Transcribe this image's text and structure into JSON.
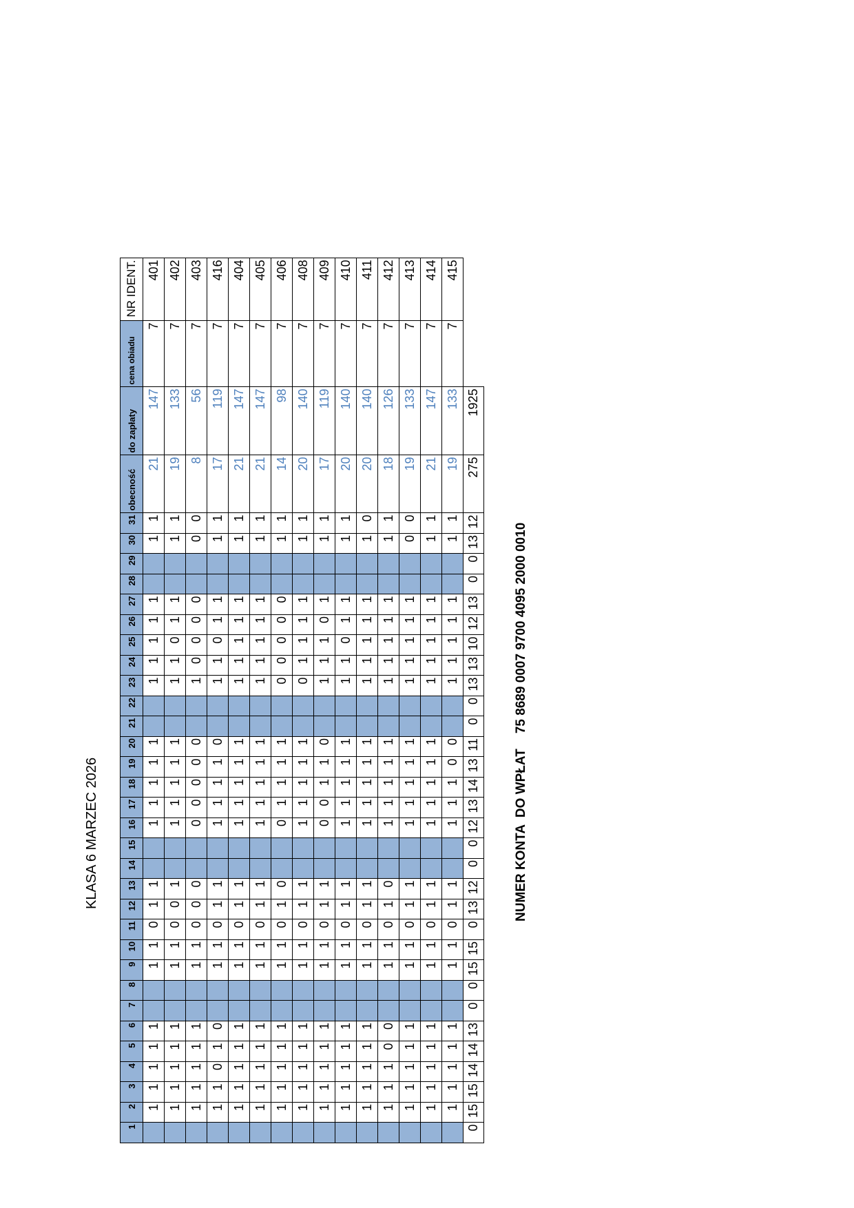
{
  "title": "KLASA 6 MARZEC 2026",
  "account": {
    "label": "NUMER KONTA  DO WPŁAT",
    "number": "75 8689 0007 9700 4095 2000 0010"
  },
  "colors": {
    "header_fill": "#95b3d7",
    "computed_text": "#4f81bd"
  },
  "table": {
    "day_headers": [
      "1",
      "2",
      "3",
      "4",
      "5",
      "6",
      "7",
      "8",
      "9",
      "10",
      "11",
      "12",
      "13",
      "14",
      "15",
      "16",
      "17",
      "18",
      "19",
      "20",
      "21",
      "22",
      "23",
      "24",
      "25",
      "26",
      "27",
      "28",
      "29",
      "30",
      "31"
    ],
    "weekend_days": [
      "1",
      "7",
      "8",
      "14",
      "15",
      "21",
      "22",
      "28",
      "29"
    ],
    "col_obecnosc": "obecność",
    "col_do_zaplaty": "do zapłaty",
    "col_cena": "cena obiadu",
    "col_ident": "NR IDENT.",
    "rows": [
      {
        "days": [
          "",
          "1",
          "1",
          "1",
          "1",
          "1",
          "",
          "",
          "1",
          "1",
          "0",
          "1",
          "1",
          "",
          "",
          "1",
          "1",
          "1",
          "1",
          "1",
          "",
          "",
          "1",
          "1",
          "1",
          "1",
          "1",
          "",
          "",
          "1",
          "1"
        ],
        "obecnosc": "21",
        "do_zaplaty": "147",
        "cena": "7",
        "ident": "401"
      },
      {
        "days": [
          "",
          "1",
          "1",
          "1",
          "1",
          "1",
          "",
          "",
          "1",
          "1",
          "0",
          "0",
          "1",
          "",
          "",
          "1",
          "1",
          "1",
          "1",
          "1",
          "",
          "",
          "1",
          "1",
          "0",
          "1",
          "1",
          "",
          "",
          "1",
          "1"
        ],
        "obecnosc": "19",
        "do_zaplaty": "133",
        "cena": "7",
        "ident": "402"
      },
      {
        "days": [
          "",
          "1",
          "1",
          "1",
          "1",
          "1",
          "",
          "",
          "1",
          "1",
          "0",
          "0",
          "0",
          "",
          "",
          "0",
          "0",
          "0",
          "0",
          "0",
          "",
          "",
          "1",
          "0",
          "0",
          "0",
          "0",
          "",
          "",
          "0",
          "0"
        ],
        "obecnosc": "8",
        "do_zaplaty": "56",
        "cena": "7",
        "ident": "403"
      },
      {
        "days": [
          "",
          "1",
          "1",
          "0",
          "1",
          "0",
          "",
          "",
          "1",
          "1",
          "0",
          "1",
          "1",
          "",
          "",
          "1",
          "1",
          "1",
          "1",
          "0",
          "",
          "",
          "1",
          "1",
          "0",
          "1",
          "1",
          "",
          "",
          "1",
          "1"
        ],
        "obecnosc": "17",
        "do_zaplaty": "119",
        "cena": "7",
        "ident": "416"
      },
      {
        "days": [
          "",
          "1",
          "1",
          "1",
          "1",
          "1",
          "",
          "",
          "1",
          "1",
          "0",
          "1",
          "1",
          "",
          "",
          "1",
          "1",
          "1",
          "1",
          "1",
          "",
          "",
          "1",
          "1",
          "1",
          "1",
          "1",
          "",
          "",
          "1",
          "1"
        ],
        "obecnosc": "21",
        "do_zaplaty": "147",
        "cena": "7",
        "ident": "404"
      },
      {
        "days": [
          "",
          "1",
          "1",
          "1",
          "1",
          "1",
          "",
          "",
          "1",
          "1",
          "0",
          "1",
          "1",
          "",
          "",
          "1",
          "1",
          "1",
          "1",
          "1",
          "",
          "",
          "1",
          "1",
          "1",
          "1",
          "1",
          "",
          "",
          "1",
          "1"
        ],
        "obecnosc": "21",
        "do_zaplaty": "147",
        "cena": "7",
        "ident": "405"
      },
      {
        "days": [
          "",
          "1",
          "1",
          "1",
          "1",
          "1",
          "",
          "",
          "1",
          "1",
          "0",
          "1",
          "0",
          "",
          "",
          "0",
          "1",
          "1",
          "1",
          "1",
          "",
          "",
          "0",
          "0",
          "0",
          "0",
          "0",
          "",
          "",
          "1",
          "1"
        ],
        "obecnosc": "14",
        "do_zaplaty": "98",
        "cena": "7",
        "ident": "406"
      },
      {
        "days": [
          "",
          "1",
          "1",
          "1",
          "1",
          "1",
          "",
          "",
          "1",
          "1",
          "0",
          "1",
          "1",
          "",
          "",
          "1",
          "1",
          "1",
          "1",
          "1",
          "",
          "",
          "0",
          "1",
          "1",
          "1",
          "1",
          "",
          "",
          "1",
          "1"
        ],
        "obecnosc": "20",
        "do_zaplaty": "140",
        "cena": "7",
        "ident": "408"
      },
      {
        "days": [
          "",
          "1",
          "1",
          "1",
          "1",
          "1",
          "",
          "",
          "1",
          "1",
          "0",
          "1",
          "1",
          "",
          "",
          "0",
          "0",
          "1",
          "1",
          "0",
          "",
          "",
          "1",
          "1",
          "1",
          "0",
          "1",
          "",
          "",
          "1",
          "1"
        ],
        "obecnosc": "17",
        "do_zaplaty": "119",
        "cena": "7",
        "ident": "409"
      },
      {
        "days": [
          "",
          "1",
          "1",
          "1",
          "1",
          "1",
          "",
          "",
          "1",
          "1",
          "0",
          "1",
          "1",
          "",
          "",
          "1",
          "1",
          "1",
          "1",
          "1",
          "",
          "",
          "1",
          "1",
          "0",
          "1",
          "1",
          "",
          "",
          "1",
          "1"
        ],
        "obecnosc": "20",
        "do_zaplaty": "140",
        "cena": "7",
        "ident": "410"
      },
      {
        "days": [
          "",
          "1",
          "1",
          "1",
          "1",
          "1",
          "",
          "",
          "1",
          "1",
          "0",
          "1",
          "1",
          "",
          "",
          "1",
          "1",
          "1",
          "1",
          "1",
          "",
          "",
          "1",
          "1",
          "1",
          "1",
          "1",
          "",
          "",
          "1",
          "0"
        ],
        "obecnosc": "20",
        "do_zaplaty": "140",
        "cena": "7",
        "ident": "411"
      },
      {
        "days": [
          "",
          "1",
          "1",
          "1",
          "0",
          "0",
          "",
          "",
          "1",
          "1",
          "0",
          "1",
          "0",
          "",
          "",
          "1",
          "1",
          "1",
          "1",
          "1",
          "",
          "",
          "1",
          "1",
          "1",
          "1",
          "1",
          "",
          "",
          "1",
          "1"
        ],
        "obecnosc": "18",
        "do_zaplaty": "126",
        "cena": "7",
        "ident": "412"
      },
      {
        "days": [
          "",
          "1",
          "1",
          "1",
          "1",
          "1",
          "",
          "",
          "1",
          "1",
          "0",
          "1",
          "1",
          "",
          "",
          "1",
          "1",
          "1",
          "1",
          "1",
          "",
          "",
          "1",
          "1",
          "1",
          "1",
          "1",
          "",
          "",
          "0",
          "0"
        ],
        "obecnosc": "19",
        "do_zaplaty": "133",
        "cena": "7",
        "ident": "413"
      },
      {
        "days": [
          "",
          "1",
          "1",
          "1",
          "1",
          "1",
          "",
          "",
          "1",
          "1",
          "0",
          "1",
          "1",
          "",
          "",
          "1",
          "1",
          "1",
          "1",
          "1",
          "",
          "",
          "1",
          "1",
          "1",
          "1",
          "1",
          "",
          "",
          "1",
          "1"
        ],
        "obecnosc": "21",
        "do_zaplaty": "147",
        "cena": "7",
        "ident": "414"
      },
      {
        "days": [
          "",
          "1",
          "1",
          "1",
          "1",
          "1",
          "",
          "",
          "1",
          "1",
          "0",
          "1",
          "1",
          "",
          "",
          "1",
          "1",
          "1",
          "0",
          "0",
          "",
          "",
          "1",
          "1",
          "1",
          "1",
          "1",
          "",
          "",
          "1",
          "1"
        ],
        "obecnosc": "19",
        "do_zaplaty": "133",
        "cena": "7",
        "ident": "415"
      }
    ],
    "totals": {
      "days": [
        "0",
        "15",
        "15",
        "14",
        "14",
        "13",
        "0",
        "0",
        "15",
        "15",
        "0",
        "13",
        "12",
        "0",
        "0",
        "12",
        "13",
        "14",
        "13",
        "11",
        "0",
        "0",
        "13",
        "13",
        "10",
        "12",
        "13",
        "0",
        "0",
        "13",
        "12"
      ],
      "obecnosc": "275",
      "do_zaplaty": "1925"
    }
  }
}
